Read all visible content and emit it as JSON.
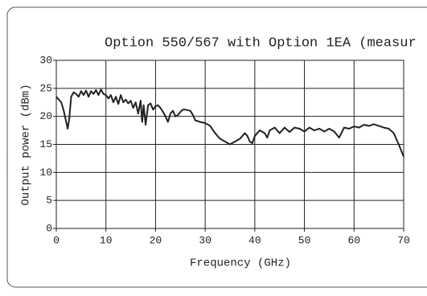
{
  "chart_data": {
    "type": "line",
    "title": "Option 550/567 with Option 1EA (measur",
    "xlabel": "Frequency (GHz)",
    "ylabel": "Output power (dBm)",
    "x": [
      0,
      0.5,
      1,
      1.5,
      2,
      2.3,
      2.6,
      3,
      3.5,
      4,
      4.5,
      5,
      5.5,
      6,
      6.5,
      7,
      7.5,
      8,
      8.5,
      9,
      9.5,
      10,
      10.5,
      11,
      11.5,
      12,
      12.5,
      13,
      13.5,
      14,
      14.5,
      15,
      15.5,
      16,
      16.5,
      17,
      17.3,
      17.6,
      18,
      18.5,
      19,
      19.5,
      20,
      20.5,
      21,
      21.5,
      22,
      22.5,
      23,
      23.5,
      24,
      24.5,
      25,
      25.5,
      26,
      27,
      27.5,
      28,
      29,
      30,
      31,
      32,
      33,
      34,
      35,
      36,
      37,
      38,
      38.5,
      39,
      39.5,
      40,
      41,
      42,
      42.5,
      43,
      44,
      45,
      46,
      47,
      48,
      49,
      50,
      51,
      52,
      53,
      54,
      55,
      56,
      57,
      58,
      59,
      60,
      61,
      62,
      63,
      64,
      65,
      66,
      67,
      68,
      69,
      70
    ],
    "values": [
      23.5,
      23,
      22.5,
      21,
      19,
      17.8,
      19.5,
      23.5,
      24.3,
      24,
      23.5,
      24.5,
      23.8,
      24.6,
      23.5,
      24.5,
      24,
      24.7,
      23.8,
      24.8,
      24,
      23.8,
      23.2,
      23.8,
      22.5,
      23.5,
      22.2,
      23.8,
      22.5,
      23,
      22.3,
      22.8,
      21.5,
      22.5,
      20.5,
      22.8,
      19,
      22,
      18.5,
      22,
      22.3,
      21.2,
      21.8,
      22,
      21.5,
      20.8,
      20,
      19,
      20.5,
      21,
      20,
      20.2,
      20.8,
      21.2,
      21.2,
      21,
      20.3,
      19.3,
      19,
      18.8,
      18.3,
      17,
      16,
      15.5,
      15,
      15.5,
      16,
      17,
      16.5,
      15.5,
      15.2,
      16.5,
      17.5,
      17,
      16.2,
      17.5,
      18,
      17,
      18,
      17.2,
      18,
      17.8,
      17.3,
      18,
      17.5,
      17.8,
      17.3,
      17.8,
      17.3,
      16.2,
      18,
      17.8,
      18.2,
      18,
      18.5,
      18.3,
      18.6,
      18.3,
      18,
      17.8,
      17,
      15,
      12.8
    ],
    "color": "#222222",
    "xlim": [
      0,
      70
    ],
    "xticks": [
      0,
      10,
      20,
      30,
      40,
      50,
      60,
      70
    ],
    "ylim": [
      0,
      30
    ],
    "yticks": [
      0,
      5,
      10,
      15,
      20,
      25,
      30
    ],
    "grid": true
  }
}
